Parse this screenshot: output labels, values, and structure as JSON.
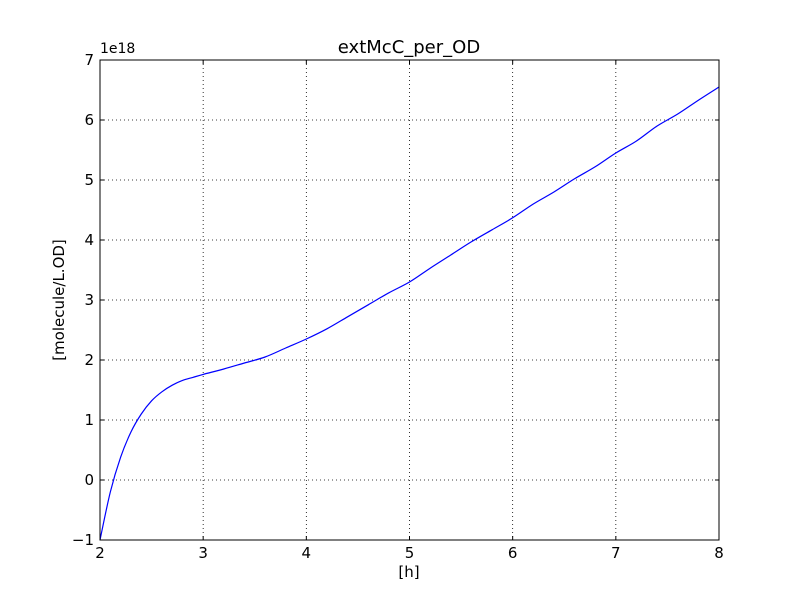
{
  "chart_data": {
    "type": "line",
    "title": "extMcC_per_OD",
    "xlabel": "[h]",
    "ylabel": "[molecule/L.OD]",
    "offset_label": "1e18",
    "xlim": [
      2,
      8
    ],
    "ylim": [
      -1,
      7
    ],
    "xticks": [
      2,
      3,
      4,
      5,
      6,
      7,
      8
    ],
    "yticks": [
      -1,
      0,
      1,
      2,
      3,
      4,
      5,
      6,
      7
    ],
    "xtick_labels": [
      "2",
      "3",
      "4",
      "5",
      "6",
      "7",
      "8"
    ],
    "ytick_labels": [
      "−1",
      "0",
      "1",
      "2",
      "3",
      "4",
      "5",
      "6",
      "7"
    ],
    "grid": true,
    "y_scale_factor": 1e+18,
    "series": [
      {
        "color": "#0000ff",
        "x": [
          2.0,
          2.1,
          2.2,
          2.3,
          2.4,
          2.5,
          2.6,
          2.7,
          2.8,
          2.9,
          3.0,
          3.2,
          3.4,
          3.6,
          3.8,
          4.0,
          4.2,
          4.4,
          4.6,
          4.8,
          5.0,
          5.2,
          5.4,
          5.6,
          5.8,
          6.0,
          6.2,
          6.4,
          6.6,
          6.8,
          7.0,
          7.2,
          7.4,
          7.6,
          7.8,
          8.0
        ],
        "y": [
          -1.0,
          -0.2,
          0.38,
          0.8,
          1.1,
          1.32,
          1.47,
          1.58,
          1.66,
          1.71,
          1.76,
          1.85,
          1.95,
          2.05,
          2.2,
          2.35,
          2.52,
          2.72,
          2.92,
          3.12,
          3.3,
          3.53,
          3.75,
          3.97,
          4.17,
          4.37,
          4.6,
          4.8,
          5.02,
          5.22,
          5.45,
          5.65,
          5.9,
          6.1,
          6.33,
          6.55
        ]
      }
    ]
  }
}
